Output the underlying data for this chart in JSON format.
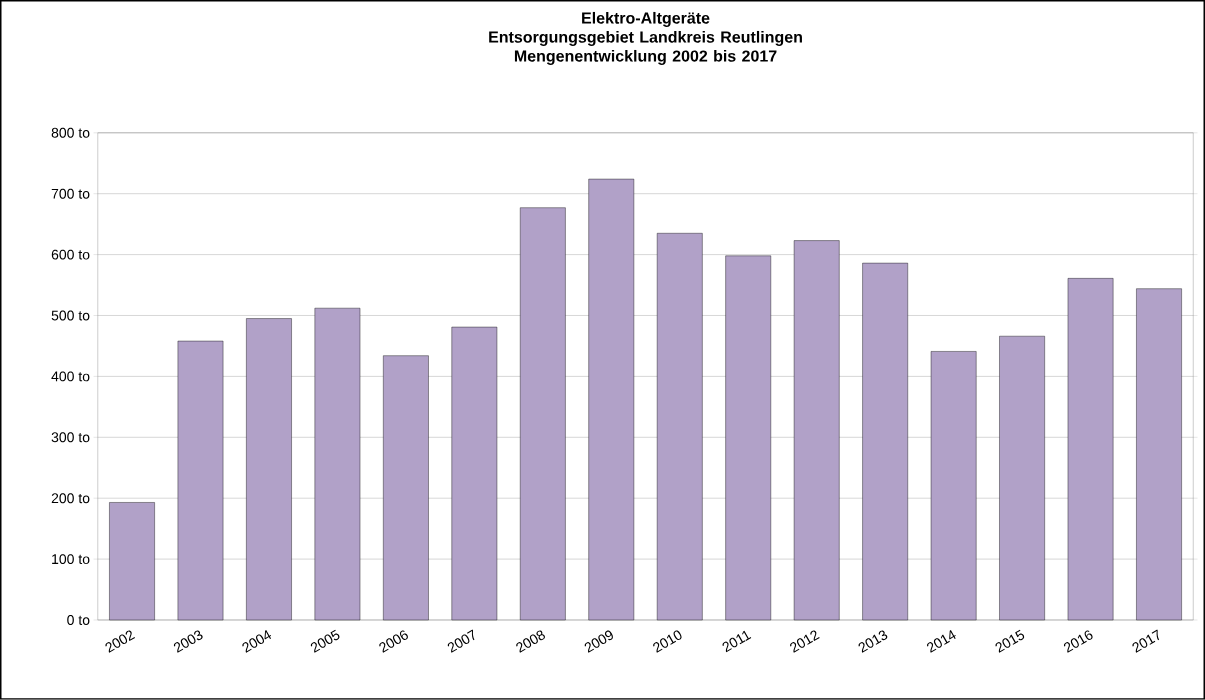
{
  "chart_data": {
    "type": "bar",
    "title": "Elektro-Altgeräte",
    "subtitle": "Entsorgungsgebiet Landkreis Reutlingen Mengenentwicklung 2002 bis 2017",
    "categories": [
      "2002",
      "2003",
      "2004",
      "2005",
      "2006",
      "2007",
      "2008",
      "2009",
      "2010",
      "2011",
      "2012",
      "2013",
      "2014",
      "2015",
      "2016",
      "2017"
    ],
    "values": [
      193,
      458,
      495,
      512,
      434,
      481,
      677,
      724,
      635,
      598,
      623,
      586,
      441,
      466,
      561,
      544
    ],
    "color": "#b1a1c8",
    "ylim": [
      0,
      800
    ],
    "yticks": [
      {
        "value": 0,
        "label": "0 to"
      },
      {
        "value": 100,
        "label": "100 to"
      },
      {
        "value": 200,
        "label": "200 to"
      },
      {
        "value": 300,
        "label": "300 to"
      },
      {
        "value": 400,
        "label": "400 to"
      },
      {
        "value": 500,
        "label": "500 to"
      },
      {
        "value": 600,
        "label": "600 to"
      },
      {
        "value": 700,
        "label": "700 to"
      },
      {
        "value": 800,
        "label": "800 to"
      }
    ],
    "grid": "y"
  }
}
